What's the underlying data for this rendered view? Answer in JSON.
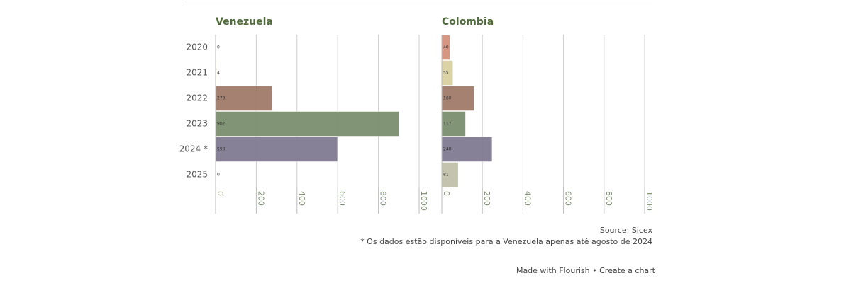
{
  "chart_data": [
    {
      "type": "bar",
      "title": "Venezuela",
      "categories": [
        "2020",
        "2021",
        "2022",
        "2023",
        "2024 *",
        "2025"
      ],
      "values": [
        0,
        4,
        279,
        902,
        599,
        0
      ],
      "colors": [
        "#d4907a",
        "#d9d0a0",
        "#a07a6a",
        "#7a8e6e",
        "#7f7a90",
        "#c0c0aa"
      ],
      "xlim": [
        0,
        1000
      ],
      "xticks": [
        0,
        200,
        400,
        600,
        800,
        1000
      ],
      "grid": true
    },
    {
      "type": "bar",
      "title": "Colombia",
      "values": [
        40,
        55,
        160,
        117,
        248,
        81
      ],
      "colors": [
        "#d4907a",
        "#d9d0a0",
        "#a07a6a",
        "#7a8e6e",
        "#7f7a90",
        "#c0c0aa"
      ],
      "xlim": [
        0,
        1000
      ],
      "xticks": [
        0,
        200,
        400,
        600,
        800,
        1000
      ],
      "grid": true
    }
  ],
  "source": "Source: Sicex",
  "note": "* Os dados estão disponíveis para a Venezuela apenas até agosto de 2024",
  "footer": "Made with Flourish • Create a chart"
}
